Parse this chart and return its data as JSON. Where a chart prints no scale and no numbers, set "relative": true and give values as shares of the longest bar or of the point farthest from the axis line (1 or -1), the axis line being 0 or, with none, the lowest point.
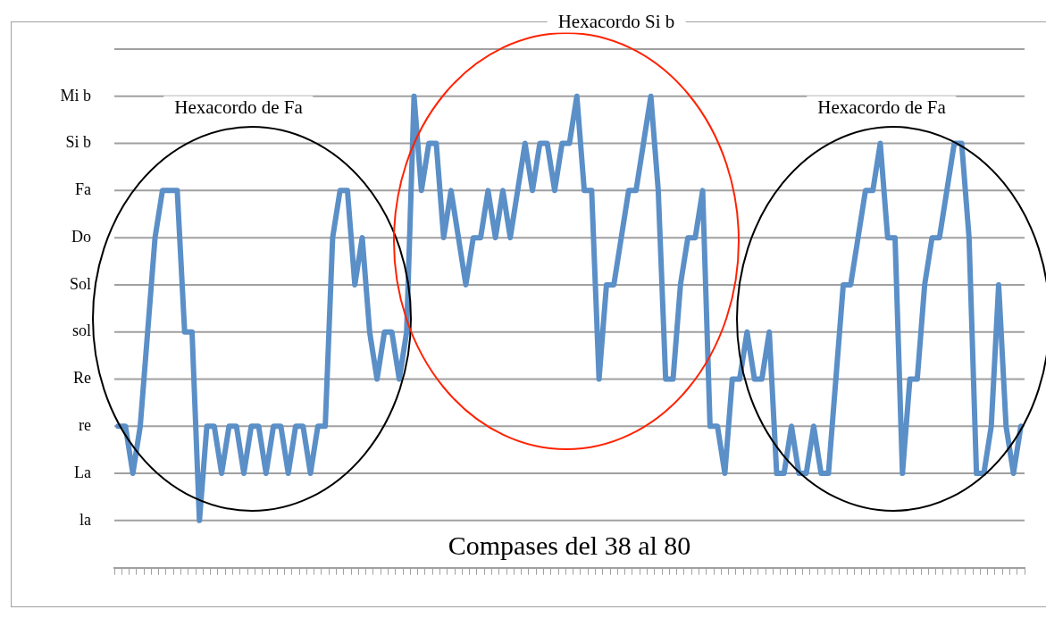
{
  "chart_data": {
    "type": "line",
    "xlabel": "Compases del 38 al 80",
    "annotations": [
      "Hexacordo de Fa",
      "Hexacordo Si b",
      "Hexacordo de Fa"
    ],
    "categories": [
      null,
      null,
      null,
      null,
      null,
      null,
      null,
      null,
      null,
      null,
      null,
      null,
      null,
      null,
      null,
      null,
      null,
      null,
      null,
      null,
      null,
      null,
      null,
      null,
      null,
      null,
      null,
      null,
      null,
      null,
      null,
      null,
      null,
      null,
      null,
      null,
      null,
      null,
      null,
      null,
      null,
      null,
      null,
      null,
      null,
      null,
      null,
      null,
      null,
      null,
      null,
      null,
      null,
      null,
      null,
      null,
      null,
      null,
      null,
      null,
      null,
      null,
      null,
      null,
      null,
      null,
      null,
      null,
      null,
      null,
      null,
      null,
      null,
      null,
      null,
      null,
      null,
      null,
      null,
      null,
      null,
      null,
      null,
      null,
      null,
      null,
      null,
      null,
      null,
      null,
      null,
      null,
      null,
      null,
      null,
      null,
      null,
      null,
      null,
      null,
      null,
      null,
      null,
      null,
      null,
      null,
      null,
      null,
      null,
      null,
      null,
      null,
      null,
      null,
      null,
      null,
      null,
      null,
      null,
      null,
      null,
      null,
      null
    ],
    "y_categories": [
      null,
      "Mi b",
      "Si b",
      "Fa",
      "Do",
      "Sol",
      "sol",
      "Re",
      "re",
      "La",
      "la"
    ],
    "relative": true,
    "series": [
      {
        "color": "#5b8fc7",
        "values": [
          0.3,
          0.3,
          0.2,
          0.3,
          0.5,
          0.7,
          0.8,
          0.8,
          0.8,
          0.5,
          0.5,
          0.1,
          0.3,
          0.3,
          0.2,
          0.3,
          0.3,
          0.2,
          0.3,
          0.3,
          0.2,
          0.3,
          0.3,
          0.2,
          0.3,
          0.3,
          0.2,
          0.3,
          0.3,
          0.7,
          0.8,
          0.8,
          0.6,
          0.7,
          0.5,
          0.4,
          0.5,
          0.5,
          0.4,
          0.5,
          1,
          0.8,
          0.9,
          0.9,
          0.7,
          0.8,
          0.7,
          0.6,
          0.7,
          0.7,
          0.8,
          0.7,
          0.8,
          0.7,
          0.8,
          0.9,
          0.8,
          0.9,
          0.9,
          0.8,
          0.9,
          0.9,
          1,
          0.8,
          0.8,
          0.4,
          0.6,
          0.6,
          0.7,
          0.8,
          0.8,
          0.9,
          1,
          0.8,
          0.4,
          0.4,
          0.6,
          0.7,
          0.7,
          0.8,
          0.3,
          0.3,
          0.2,
          0.4,
          0.4,
          0.5,
          0.4,
          0.4,
          0.5,
          0.2,
          0.2,
          0.3,
          0.2,
          0.2,
          0.3,
          0.2,
          0.2,
          0.4,
          0.6,
          0.6,
          0.7,
          0.8,
          0.8,
          0.9,
          0.7,
          0.7,
          0.2,
          0.4,
          0.4,
          0.6,
          0.7,
          0.7,
          0.8,
          0.9,
          0.9,
          0.7,
          0.2,
          0.2,
          0.3,
          0.6,
          0.3,
          0.2,
          0.3
        ]
      }
    ],
    "grid": "y",
    "legend": false,
    "marker": "none",
    "line_style": "solid"
  }
}
